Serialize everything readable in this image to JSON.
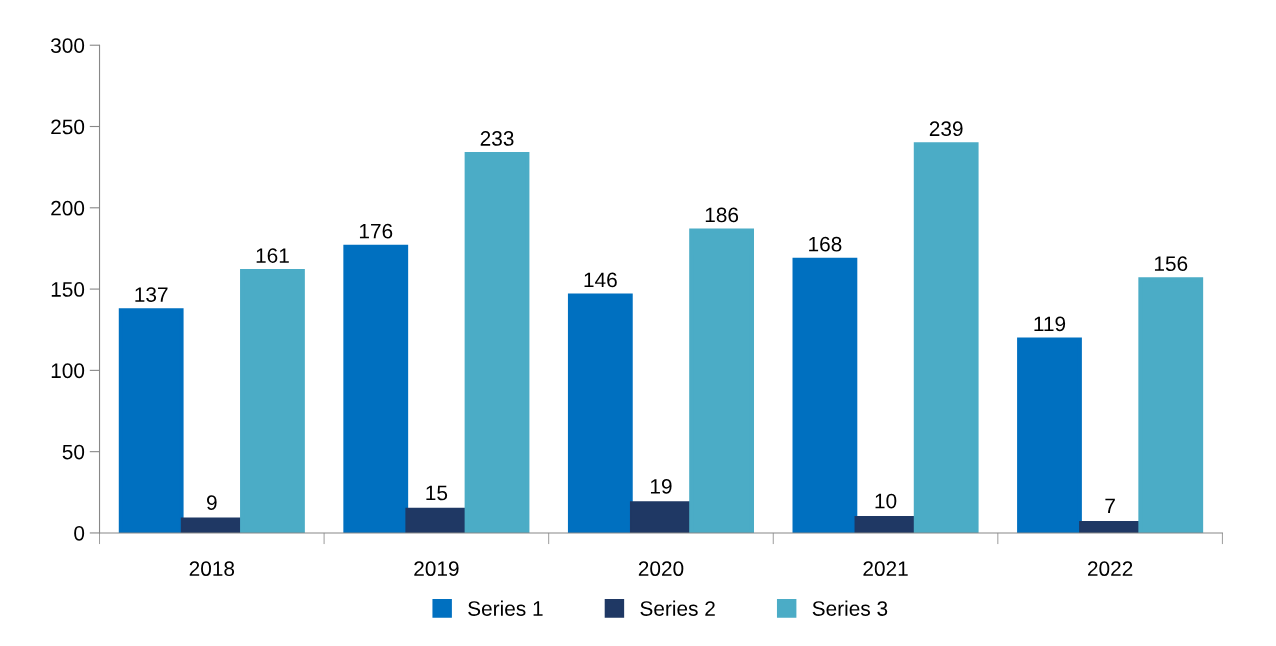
{
  "chart_data": {
    "type": "bar",
    "categories": [
      "2018",
      "2019",
      "2020",
      "2021",
      "2022"
    ],
    "series": [
      {
        "name": "Series 1",
        "color": "#0070c0",
        "values": [
          137,
          176,
          146,
          168,
          119
        ]
      },
      {
        "name": "Series 2",
        "color": "#1f3864",
        "values": [
          9,
          15,
          19,
          10,
          7
        ]
      },
      {
        "name": "Series 3",
        "color": "#4bacc6",
        "values": [
          161,
          233,
          186,
          239,
          156
        ]
      }
    ],
    "ylim": [
      0,
      300
    ],
    "yticks": [
      0,
      50,
      100,
      150,
      200,
      250,
      300
    ],
    "data_labels": true,
    "grid": false,
    "legend": "bottom"
  }
}
